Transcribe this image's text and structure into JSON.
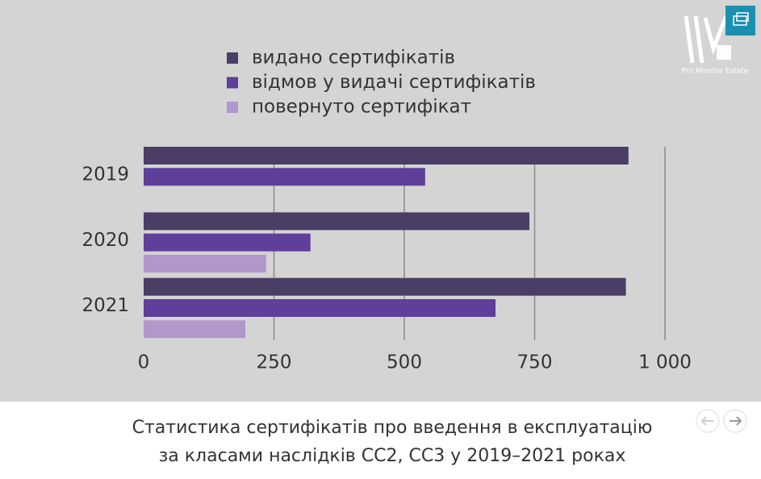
{
  "logo": "Pro Monitor Estate",
  "chart_data": {
    "type": "bar",
    "orientation": "horizontal",
    "caption": [
      "Статистика сертифікатів про введення в експлуатацію",
      "за класами наслідків СС2, СС3 у 2019–2021 роках"
    ],
    "categories": [
      "2019",
      "2020",
      "2021"
    ],
    "series": [
      {
        "name": "видано  сертифікатів",
        "color": "#4a3d66",
        "values": [
          930,
          740,
          925
        ]
      },
      {
        "name": "відмов у видачі сертифікатів",
        "color": "#5e3f99",
        "values": [
          540,
          320,
          675
        ]
      },
      {
        "name": "повернуто сертифікат",
        "color": "#b097cc",
        "values": [
          null,
          235,
          195
        ]
      }
    ],
    "xlim": [
      0,
      1000
    ],
    "xticks": [
      0,
      250,
      500,
      750,
      {
        "value": 1000,
        "label": "1 000"
      }
    ],
    "grid": true,
    "legend": "top"
  }
}
